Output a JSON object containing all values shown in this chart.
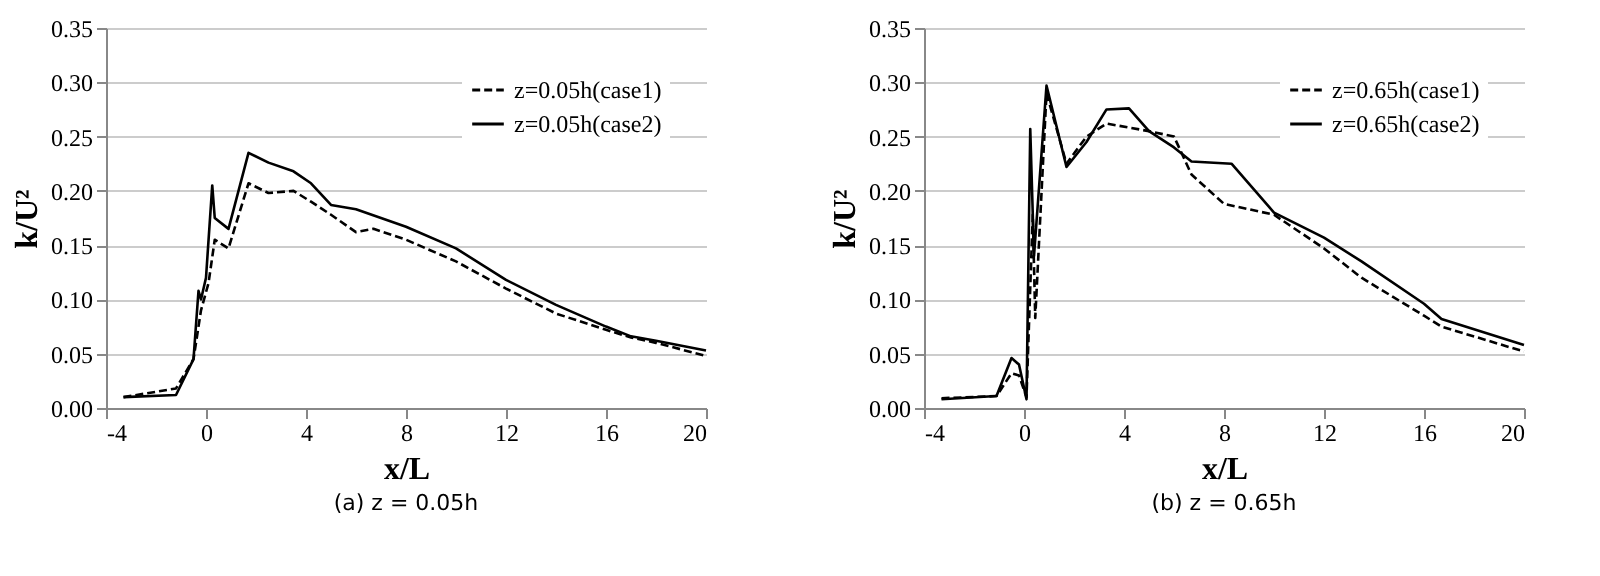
{
  "chart_data": [
    {
      "type": "line",
      "xlabel": "x/L",
      "ylabel": "k/U²",
      "annotations": [
        "(a) z = 0.05h"
      ],
      "xlim": [
        -4,
        20
      ],
      "xticks": [
        -4,
        0,
        4,
        8,
        12,
        16,
        20
      ],
      "ylim": [
        0,
        0.35
      ],
      "yticks": [
        {
          "value": 0,
          "label": "0.00"
        },
        {
          "value": 0.05,
          "label": "0.05"
        },
        {
          "value": 0.1,
          "label": "0.10"
        },
        {
          "value": 0.15,
          "label": "0.15"
        },
        {
          "value": 0.2,
          "label": "0.20"
        },
        {
          "value": 0.25,
          "label": "0.25"
        },
        {
          "value": 0.3,
          "label": "0.30"
        },
        {
          "value": 0.35,
          "label": "0.35"
        }
      ],
      "grid": "y",
      "legend": "top right",
      "series": [
        {
          "name": "z=0.05h(case1)",
          "color": "#000000",
          "line_style": "dashed",
          "x": [
            -3.3,
            -1.2,
            -0.5,
            -0.2,
            0.1,
            0.35,
            0.9,
            1.7,
            2.5,
            3.5,
            4.2,
            5,
            6,
            6.7,
            8,
            10,
            12,
            14,
            16,
            17,
            18,
            20
          ],
          "values": [
            0.01,
            0.018,
            0.045,
            0.09,
            0.115,
            0.155,
            0.147,
            0.207,
            0.198,
            0.2,
            0.19,
            0.178,
            0.162,
            0.165,
            0.155,
            0.135,
            0.11,
            0.087,
            0.072,
            0.065,
            0.06,
            0.048
          ]
        },
        {
          "name": "z=0.05h(case2)",
          "color": "#000000",
          "line_style": "solid",
          "x": [
            -3.3,
            -1.2,
            -0.5,
            -0.3,
            -0.2,
            0,
            0.25,
            0.35,
            0.9,
            1.7,
            2.5,
            3.5,
            4.2,
            5,
            6,
            7,
            8,
            10,
            12,
            14,
            16,
            17,
            18,
            20
          ],
          "values": [
            0.01,
            0.012,
            0.045,
            0.108,
            0.1,
            0.12,
            0.205,
            0.175,
            0.165,
            0.235,
            0.226,
            0.218,
            0.207,
            0.187,
            0.183,
            0.175,
            0.167,
            0.147,
            0.118,
            0.095,
            0.075,
            0.066,
            0.062,
            0.053
          ]
        }
      ]
    },
    {
      "type": "line",
      "xlabel": "x/L",
      "ylabel": "k/U²",
      "annotations": [
        "(b) z = 0.65h"
      ],
      "xlim": [
        -4,
        20
      ],
      "xticks": [
        -4,
        0,
        4,
        8,
        12,
        16,
        20
      ],
      "ylim": [
        0,
        0.35
      ],
      "yticks": [
        {
          "value": 0,
          "label": "0.00"
        },
        {
          "value": 0.05,
          "label": "0.05"
        },
        {
          "value": 0.1,
          "label": "0.10"
        },
        {
          "value": 0.15,
          "label": "0.15"
        },
        {
          "value": 0.2,
          "label": "0.20"
        },
        {
          "value": 0.25,
          "label": "0.25"
        },
        {
          "value": 0.3,
          "label": "0.30"
        },
        {
          "value": 0.35,
          "label": "0.35"
        }
      ],
      "grid": "y",
      "legend": "top right",
      "series": [
        {
          "name": "z=0.65h(case1)",
          "color": "#000000",
          "line_style": "dashed",
          "x": [
            -3.3,
            -1.1,
            -0.5,
            -0.2,
            0.1,
            0.35,
            0.45,
            0.9,
            1.7,
            2.5,
            3.3,
            5,
            6,
            6.7,
            8,
            10,
            12,
            13.5,
            16,
            16.7,
            20
          ],
          "values": [
            0.009,
            0.011,
            0.032,
            0.03,
            0.01,
            0.178,
            0.083,
            0.29,
            0.225,
            0.25,
            0.262,
            0.255,
            0.25,
            0.215,
            0.188,
            0.178,
            0.147,
            0.12,
            0.085,
            0.075,
            0.052
          ]
        },
        {
          "name": "z=0.65h(case2)",
          "color": "#000000",
          "line_style": "solid",
          "x": [
            -3.3,
            -1.1,
            -0.5,
            -0.2,
            0.1,
            0.25,
            0.4,
            0.9,
            1.7,
            2.5,
            3.3,
            4.2,
            5,
            6,
            6.7,
            8.3,
            10,
            12,
            13.5,
            16,
            16.7,
            20
          ],
          "values": [
            0.008,
            0.011,
            0.046,
            0.04,
            0.008,
            0.257,
            0.14,
            0.297,
            0.222,
            0.245,
            0.275,
            0.276,
            0.255,
            0.24,
            0.227,
            0.225,
            0.18,
            0.157,
            0.135,
            0.096,
            0.082,
            0.058
          ]
        }
      ]
    }
  ]
}
